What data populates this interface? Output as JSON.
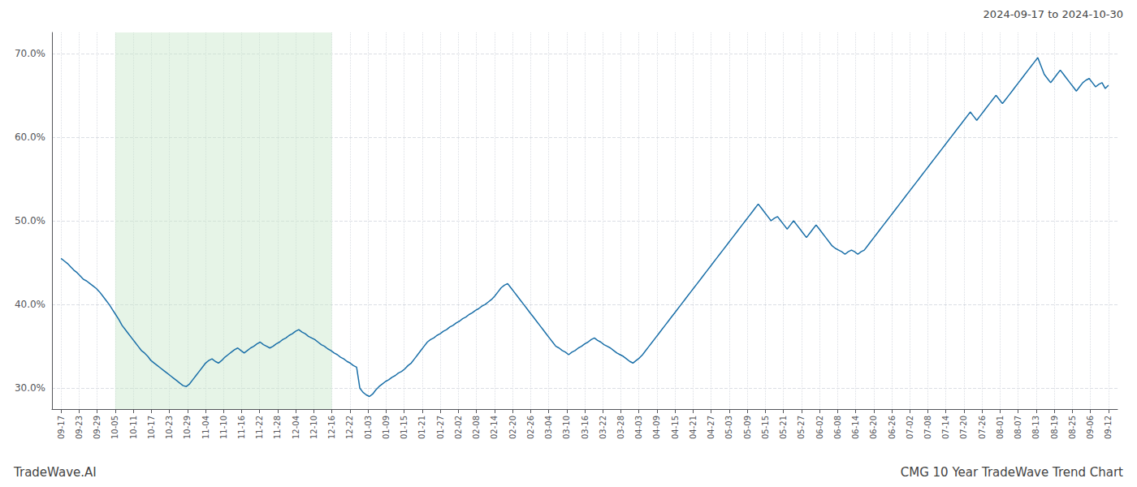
{
  "chart_data": {
    "type": "line",
    "title": "CMG 10 Year TradeWave Trend Chart",
    "subtitle": "2024-09-17 to 2024-10-30",
    "annotations": [
      "TradeWave.AI"
    ],
    "color": "#1a6fa8",
    "grid": true,
    "spans": [
      {
        "x": [
          3,
          15
        ],
        "color": "#c8e6c9"
      }
    ],
    "xlim": [
      -0.5,
      58.5
    ],
    "xticks": [
      {
        "value": 0,
        "label": "09-17"
      },
      {
        "value": 1,
        "label": "09-23"
      },
      {
        "value": 2,
        "label": "09-29"
      },
      {
        "value": 3,
        "label": "10-05"
      },
      {
        "value": 4,
        "label": "10-11"
      },
      {
        "value": 5,
        "label": "10-17"
      },
      {
        "value": 6,
        "label": "10-23"
      },
      {
        "value": 7,
        "label": "10-29"
      },
      {
        "value": 8,
        "label": "11-04"
      },
      {
        "value": 9,
        "label": "11-10"
      },
      {
        "value": 10,
        "label": "11-16"
      },
      {
        "value": 11,
        "label": "11-22"
      },
      {
        "value": 12,
        "label": "11-28"
      },
      {
        "value": 13,
        "label": "12-04"
      },
      {
        "value": 14,
        "label": "12-10"
      },
      {
        "value": 15,
        "label": "12-16"
      },
      {
        "value": 16,
        "label": "12-22"
      },
      {
        "value": 17,
        "label": "01-03"
      },
      {
        "value": 18,
        "label": "01-09"
      },
      {
        "value": 19,
        "label": "01-15"
      },
      {
        "value": 20,
        "label": "01-21"
      },
      {
        "value": 21,
        "label": "01-27"
      },
      {
        "value": 22,
        "label": "02-02"
      },
      {
        "value": 23,
        "label": "02-08"
      },
      {
        "value": 24,
        "label": "02-14"
      },
      {
        "value": 25,
        "label": "02-20"
      },
      {
        "value": 26,
        "label": "02-26"
      },
      {
        "value": 27,
        "label": "03-04"
      },
      {
        "value": 28,
        "label": "03-10"
      },
      {
        "value": 29,
        "label": "03-16"
      },
      {
        "value": 30,
        "label": "03-22"
      },
      {
        "value": 31,
        "label": "03-28"
      },
      {
        "value": 32,
        "label": "04-03"
      },
      {
        "value": 33,
        "label": "04-09"
      },
      {
        "value": 34,
        "label": "04-15"
      },
      {
        "value": 35,
        "label": "04-21"
      },
      {
        "value": 36,
        "label": "04-27"
      },
      {
        "value": 37,
        "label": "05-03"
      },
      {
        "value": 38,
        "label": "05-09"
      },
      {
        "value": 39,
        "label": "05-15"
      },
      {
        "value": 40,
        "label": "05-21"
      },
      {
        "value": 41,
        "label": "05-27"
      },
      {
        "value": 42,
        "label": "06-02"
      },
      {
        "value": 43,
        "label": "06-08"
      },
      {
        "value": 44,
        "label": "06-14"
      },
      {
        "value": 45,
        "label": "06-20"
      },
      {
        "value": 46,
        "label": "06-26"
      },
      {
        "value": 47,
        "label": "07-02"
      },
      {
        "value": 48,
        "label": "07-08"
      },
      {
        "value": 49,
        "label": "07-14"
      },
      {
        "value": 50,
        "label": "07-20"
      },
      {
        "value": 51,
        "label": "07-26"
      },
      {
        "value": 52,
        "label": "08-01"
      },
      {
        "value": 53,
        "label": "08-07"
      },
      {
        "value": 54,
        "label": "08-13"
      },
      {
        "value": 55,
        "label": "08-19"
      },
      {
        "value": 56,
        "label": "08-25"
      },
      {
        "value": 57,
        "label": "09-06"
      },
      {
        "value": 58,
        "label": "09-12"
      }
    ],
    "ylim": [
      27.5,
      72.5
    ],
    "yticks": [
      {
        "value": 30,
        "label": "30.0%"
      },
      {
        "value": 40,
        "label": "40.0%"
      },
      {
        "value": 50,
        "label": "50.0%"
      },
      {
        "value": 60,
        "label": "60.0%"
      },
      {
        "value": 70,
        "label": "70.0%"
      }
    ],
    "x": [
      0,
      0.178,
      0.356,
      0.534,
      0.712,
      0.89,
      1.067,
      1.245,
      1.423,
      1.601,
      1.779,
      1.957,
      2.135,
      2.313,
      2.491,
      2.669,
      2.847,
      3.025,
      3.202,
      3.38,
      3.558,
      3.736,
      3.914,
      4.092,
      4.27,
      4.448,
      4.626,
      4.804,
      4.982,
      5.16,
      5.337,
      5.515,
      5.693,
      5.871,
      6.049,
      6.227,
      6.405,
      6.583,
      6.761,
      6.939,
      7.117,
      7.294,
      7.472,
      7.65,
      7.828,
      8.006,
      8.184,
      8.362,
      8.54,
      8.718,
      8.896,
      9.074,
      9.252,
      9.429,
      9.607,
      9.785,
      9.963,
      10.141,
      10.319,
      10.497,
      10.675,
      10.853,
      11.031,
      11.209,
      11.387,
      11.564,
      11.742,
      11.92,
      12.098,
      12.276,
      12.454,
      12.632,
      12.81,
      12.988,
      13.166,
      13.344,
      13.521,
      13.699,
      13.877,
      14.055,
      14.233,
      14.411,
      14.589,
      14.767,
      14.945,
      15.123,
      15.301,
      15.479,
      15.656,
      15.834,
      16.012,
      16.19,
      16.368,
      16.546,
      16.724,
      16.902,
      17.08,
      17.258,
      17.436,
      17.613,
      17.791,
      17.969,
      18.147,
      18.325,
      18.503,
      18.681,
      18.859,
      19.037,
      19.215,
      19.393,
      19.571,
      19.748,
      19.926,
      20.104,
      20.282,
      20.46,
      20.638,
      20.816,
      20.994,
      21.172,
      21.35,
      21.528,
      21.706,
      21.883,
      22.061,
      22.239,
      22.417,
      22.595,
      22.773,
      22.951,
      23.129,
      23.307,
      23.485,
      23.663,
      23.84,
      24.018,
      24.196,
      24.374,
      24.552,
      24.73,
      24.908,
      25.086,
      25.264,
      25.442,
      25.62,
      25.798,
      25.975,
      26.153,
      26.331,
      26.509,
      26.687,
      26.865,
      27.043,
      27.221,
      27.399,
      27.577,
      27.755,
      27.933,
      28.11,
      28.288,
      28.466,
      28.644,
      28.822,
      29,
      29.178,
      29.356,
      29.534,
      29.712,
      29.89,
      30.067,
      30.245,
      30.423,
      30.601,
      30.779,
      30.957,
      31.135,
      31.313,
      31.491,
      31.669,
      31.847,
      32.025,
      32.202,
      32.38,
      32.558,
      32.736,
      32.914,
      33.092,
      33.27,
      33.448,
      33.626,
      33.804,
      33.982,
      34.16,
      34.337,
      34.515,
      34.693,
      34.871,
      35.049,
      35.227,
      35.405,
      35.583,
      35.761,
      35.939,
      36.117,
      36.294,
      36.472,
      36.65,
      36.828,
      37.006,
      37.184,
      37.362,
      37.54,
      37.718,
      37.896,
      38.074,
      38.252,
      38.429,
      38.607,
      38.785,
      38.963,
      39.141,
      39.319,
      39.497,
      39.675,
      39.853,
      40.031,
      40.209,
      40.387,
      40.564,
      40.742,
      40.92,
      41.098,
      41.276,
      41.454,
      41.632,
      41.81,
      41.988,
      42.166,
      42.344,
      42.521,
      42.699,
      42.877,
      43.055,
      43.233,
      43.411,
      43.589,
      43.767,
      43.945,
      44.123,
      44.301,
      44.479,
      44.656,
      44.834,
      45.012,
      45.19,
      45.368,
      45.546,
      45.724,
      45.902,
      46.08,
      46.258,
      46.436,
      46.613,
      46.791,
      46.969,
      47.147,
      47.325,
      47.503,
      47.681,
      47.859,
      48.037,
      48.215,
      48.393,
      48.571,
      48.748,
      48.926,
      49.104,
      49.282,
      49.46,
      49.638,
      49.816,
      49.994,
      50.172,
      50.35,
      50.528,
      50.706,
      50.883,
      51.061,
      51.239,
      51.417,
      51.595,
      51.773,
      51.951,
      52.129,
      52.307,
      52.485,
      52.663,
      52.84,
      53.018,
      53.196,
      53.374,
      53.552,
      53.73,
      53.908,
      54.086,
      54.264,
      54.442,
      54.62,
      54.798,
      54.975,
      55.153,
      55.331,
      55.509,
      55.687,
      55.865,
      56.043,
      56.221,
      56.399,
      56.577,
      56.755,
      56.933,
      57.11,
      57.288,
      57.466,
      57.644,
      57.822,
      58
    ],
    "values": [
      45.5,
      45.2,
      44.9,
      44.5,
      44.1,
      43.8,
      43.4,
      43.0,
      42.8,
      42.5,
      42.2,
      41.9,
      41.5,
      41.0,
      40.5,
      40.0,
      39.4,
      38.8,
      38.2,
      37.5,
      37.0,
      36.5,
      36.0,
      35.5,
      35.0,
      34.5,
      34.2,
      33.8,
      33.3,
      33.0,
      32.7,
      32.4,
      32.1,
      31.8,
      31.5,
      31.2,
      30.9,
      30.6,
      30.3,
      30.2,
      30.5,
      31.0,
      31.5,
      32.0,
      32.5,
      33.0,
      33.3,
      33.5,
      33.2,
      33.0,
      33.3,
      33.7,
      34.0,
      34.3,
      34.6,
      34.8,
      34.5,
      34.2,
      34.5,
      34.8,
      35.0,
      35.3,
      35.5,
      35.2,
      35.0,
      34.8,
      35.0,
      35.3,
      35.5,
      35.8,
      36.0,
      36.3,
      36.5,
      36.8,
      37.0,
      36.7,
      36.5,
      36.2,
      36.0,
      35.8,
      35.5,
      35.2,
      35.0,
      34.7,
      34.5,
      34.2,
      34.0,
      33.7,
      33.5,
      33.2,
      33.0,
      32.7,
      32.5,
      30.0,
      29.5,
      29.2,
      29.0,
      29.3,
      29.8,
      30.2,
      30.5,
      30.8,
      31.0,
      31.3,
      31.5,
      31.8,
      32.0,
      32.3,
      32.7,
      33.0,
      33.5,
      34.0,
      34.5,
      35.0,
      35.5,
      35.8,
      36.0,
      36.3,
      36.5,
      36.8,
      37.0,
      37.3,
      37.5,
      37.8,
      38.0,
      38.3,
      38.5,
      38.8,
      39.0,
      39.3,
      39.5,
      39.8,
      40.0,
      40.3,
      40.6,
      41.0,
      41.5,
      42.0,
      42.3,
      42.5,
      42.0,
      41.5,
      41.0,
      40.5,
      40.0,
      39.5,
      39.0,
      38.5,
      38.0,
      37.5,
      37.0,
      36.5,
      36.0,
      35.5,
      35.0,
      34.8,
      34.5,
      34.3,
      34.0,
      34.3,
      34.5,
      34.8,
      35.0,
      35.3,
      35.5,
      35.8,
      36.0,
      35.7,
      35.5,
      35.2,
      35.0,
      34.8,
      34.5,
      34.2,
      34.0,
      33.8,
      33.5,
      33.2,
      33.0,
      33.3,
      33.6,
      34.0,
      34.5,
      35.0,
      35.5,
      36.0,
      36.5,
      37.0,
      37.5,
      38.0,
      38.5,
      39.0,
      39.5,
      40.0,
      40.5,
      41.0,
      41.5,
      42.0,
      42.5,
      43.0,
      43.5,
      44.0,
      44.5,
      45.0,
      45.5,
      46.0,
      46.5,
      47.0,
      47.5,
      48.0,
      48.5,
      49.0,
      49.5,
      50.0,
      50.5,
      51.0,
      51.5,
      52.0,
      51.5,
      51.0,
      50.5,
      50.0,
      50.3,
      50.5,
      50.0,
      49.5,
      49.0,
      49.5,
      50.0,
      49.5,
      49.0,
      48.5,
      48.0,
      48.5,
      49.0,
      49.5,
      49.0,
      48.5,
      48.0,
      47.5,
      47.0,
      46.7,
      46.5,
      46.3,
      46.0,
      46.3,
      46.5,
      46.3,
      46.0,
      46.3,
      46.5,
      47.0,
      47.5,
      48.0,
      48.5,
      49.0,
      49.5,
      50.0,
      50.5,
      51.0,
      51.5,
      52.0,
      52.5,
      53.0,
      53.5,
      54.0,
      54.5,
      55.0,
      55.5,
      56.0,
      56.5,
      57.0,
      57.5,
      58.0,
      58.5,
      59.0,
      59.5,
      60.0,
      60.5,
      61.0,
      61.5,
      62.0,
      62.5,
      63.0,
      62.5,
      62.0,
      62.5,
      63.0,
      63.5,
      64.0,
      64.5,
      65.0,
      64.5,
      64.0,
      64.5,
      65.0,
      65.5,
      66.0,
      66.5,
      67.0,
      67.5,
      68.0,
      68.5,
      69.0,
      69.5,
      68.5,
      67.5,
      67.0,
      66.5,
      67.0,
      67.5,
      68.0,
      67.5,
      67.0,
      66.5,
      66.0,
      65.5,
      66.0,
      66.5,
      66.8,
      67.0,
      66.5,
      66.0,
      66.3,
      66.5,
      65.8,
      66.2
    ]
  }
}
